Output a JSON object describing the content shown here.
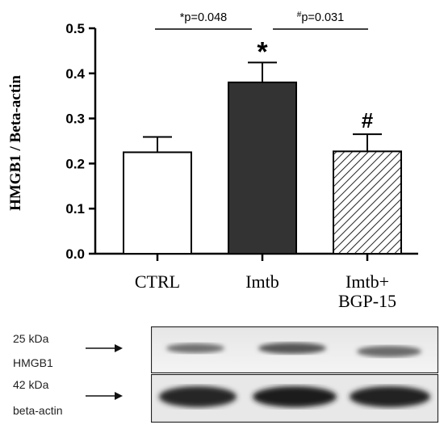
{
  "chart_data": {
    "type": "bar",
    "ylabel": "HMGB1 / Beta-actin",
    "ylim": [
      0,
      0.5
    ],
    "yticks": [
      "0.0",
      "0.1",
      "0.2",
      "0.3",
      "0.4",
      "0.5"
    ],
    "categories": [
      {
        "line1": "CTRL",
        "line2": ""
      },
      {
        "line1": "Imtb",
        "line2": ""
      },
      {
        "line1": "Imtb+",
        "line2": "BGP-15"
      }
    ],
    "values": [
      0.225,
      0.38,
      0.227
    ],
    "errors": [
      0.034,
      0.044,
      0.038
    ],
    "fills": [
      "white",
      "#333333",
      "hatch"
    ],
    "bar_marks": [
      "",
      "*",
      "#"
    ],
    "comparisons": [
      {
        "from": 0,
        "to": 1,
        "sup": "",
        "prefix": "*",
        "text": "p=0.048"
      },
      {
        "from": 1,
        "to": 2,
        "sup": "#",
        "prefix": "",
        "text": "p=0.031"
      }
    ]
  },
  "blot": {
    "hmgb1_kda": "25 kDa",
    "hmgb1_label": "HMGB1",
    "actin_kda": "42 kDa",
    "actin_label": "beta-actin"
  }
}
